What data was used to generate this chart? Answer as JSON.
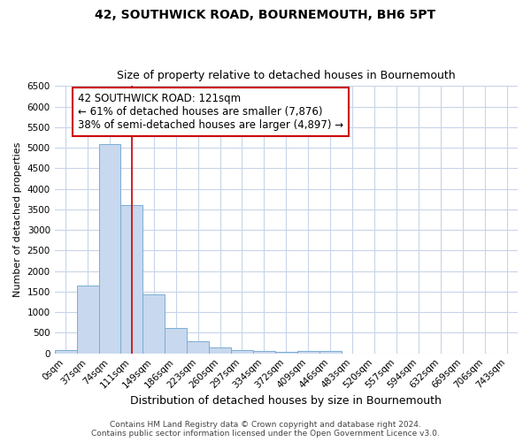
{
  "title": "42, SOUTHWICK ROAD, BOURNEMOUTH, BH6 5PT",
  "subtitle": "Size of property relative to detached houses in Bournemouth",
  "xlabel": "Distribution of detached houses by size in Bournemouth",
  "ylabel": "Number of detached properties",
  "bar_labels": [
    "0sqm",
    "37sqm",
    "74sqm",
    "111sqm",
    "149sqm",
    "186sqm",
    "223sqm",
    "260sqm",
    "297sqm",
    "334sqm",
    "372sqm",
    "409sqm",
    "446sqm",
    "483sqm",
    "520sqm",
    "557sqm",
    "594sqm",
    "632sqm",
    "669sqm",
    "706sqm",
    "743sqm"
  ],
  "bar_values": [
    70,
    1650,
    5080,
    3600,
    1430,
    610,
    290,
    150,
    80,
    50,
    40,
    50,
    65,
    0,
    0,
    0,
    0,
    0,
    0,
    0,
    0
  ],
  "bar_color": "#c8d8ee",
  "bar_edge_color": "#7aaed4",
  "grid_color": "#c8d4e8",
  "background_color": "#ffffff",
  "plot_bg_color": "#ffffff",
  "vline_x": 3.0,
  "vline_color": "#cc0000",
  "annotation_text": "42 SOUTHWICK ROAD: 121sqm\n← 61% of detached houses are smaller (7,876)\n38% of semi-detached houses are larger (4,897) →",
  "annotation_box_color": "#ffffff",
  "annotation_box_edge_color": "#cc0000",
  "ylim": [
    0,
    6500
  ],
  "yticks": [
    0,
    500,
    1000,
    1500,
    2000,
    2500,
    3000,
    3500,
    4000,
    4500,
    5000,
    5500,
    6000,
    6500
  ],
  "footer_line1": "Contains HM Land Registry data © Crown copyright and database right 2024.",
  "footer_line2": "Contains public sector information licensed under the Open Government Licence v3.0.",
  "title_fontsize": 10,
  "subtitle_fontsize": 9,
  "xlabel_fontsize": 9,
  "ylabel_fontsize": 8,
  "tick_fontsize": 7.5,
  "annotation_fontsize": 8.5,
  "footer_fontsize": 6.5
}
